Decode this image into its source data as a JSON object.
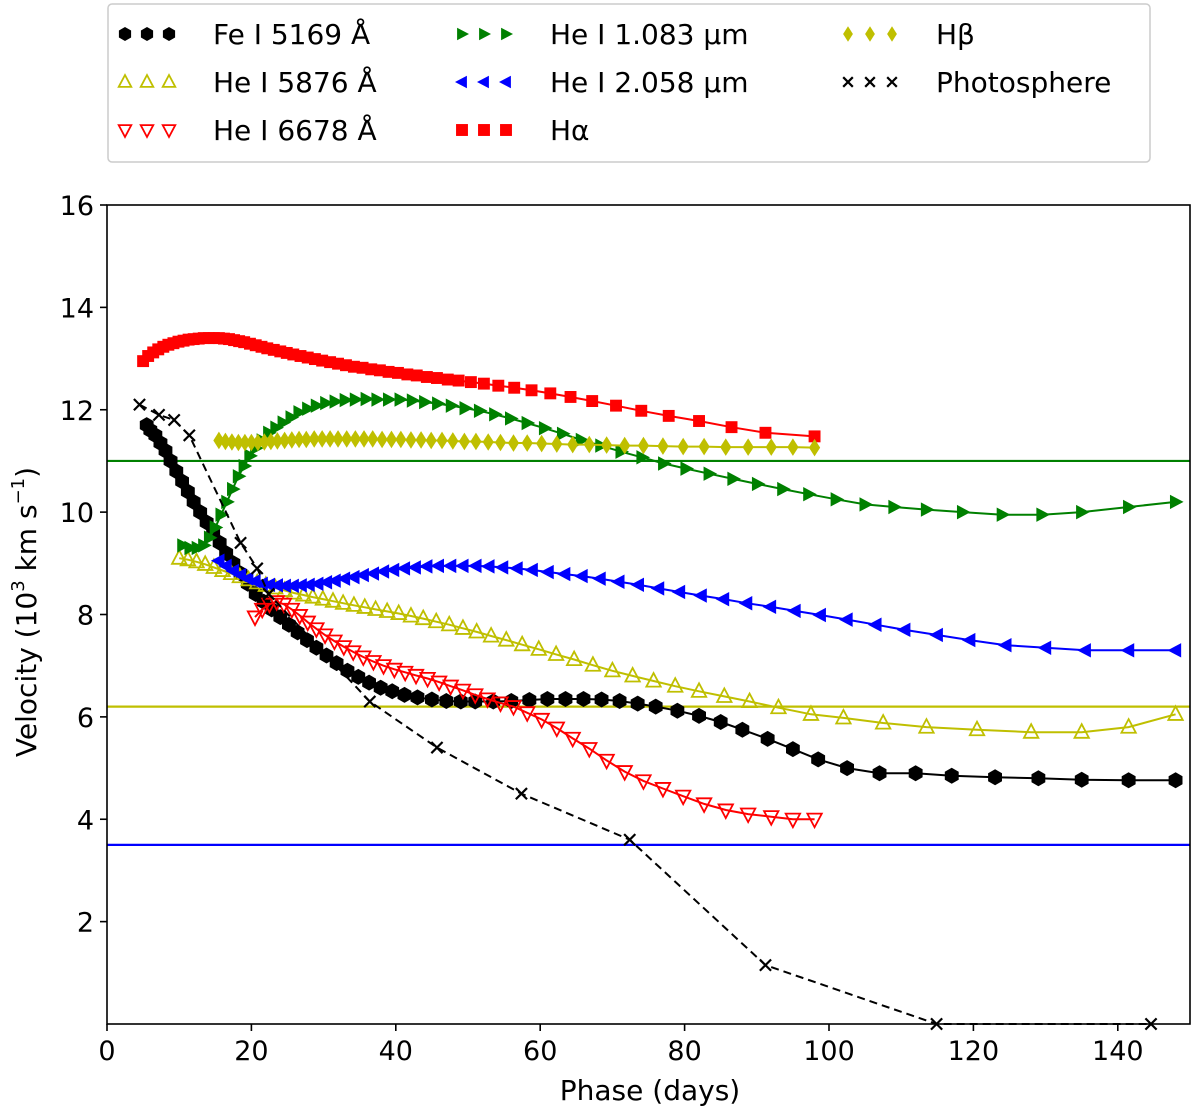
{
  "chart_data": {
    "type": "line",
    "title": "",
    "xlabel": "Phase (days)",
    "ylabel_main": "Velocity (10",
    "ylabel_sup": "3",
    "ylabel_unit": " km s",
    "ylabel_sup2": "−1",
    "ylabel_close": ")",
    "xlim": [
      0,
      150
    ],
    "ylim": [
      0,
      16
    ],
    "xticks": [
      0,
      20,
      40,
      60,
      80,
      100,
      120,
      140
    ],
    "yticks": [
      2,
      4,
      6,
      8,
      10,
      12,
      14,
      16
    ],
    "legend_position": "top-center",
    "hlines": [
      {
        "name": "He I 1.083 µm line",
        "y": 11.0,
        "color": "#008000"
      },
      {
        "name": "He I 5876 Å line",
        "y": 6.2,
        "color": "#bfbf00"
      },
      {
        "name": "He I 2.058 µm line",
        "y": 3.5,
        "color": "#0000ff"
      }
    ],
    "series": [
      {
        "name": "Fe I 5169 Å",
        "marker": "hexagon",
        "color": "#000000",
        "filled": true,
        "linestyle": "solid",
        "x": [
          5.5,
          6,
          6.7,
          7.4,
          8.1,
          8.8,
          9.6,
          10.4,
          11.2,
          12,
          12.9,
          13.8,
          14.7,
          15.6,
          16.5,
          17.5,
          18.5,
          19.5,
          20.6,
          21.7,
          22.8,
          24,
          25.2,
          26.4,
          27.7,
          29,
          30.4,
          31.8,
          33.3,
          34.8,
          36.3,
          37.9,
          39.5,
          41.2,
          43,
          45,
          47,
          49,
          51,
          53.5,
          56,
          58.5,
          61,
          63.5,
          66,
          68.5,
          71,
          73.5,
          76,
          79,
          82,
          85,
          88,
          91.5,
          95,
          98.5,
          102.5,
          107,
          112,
          117,
          123,
          129,
          135,
          141.5,
          148
        ],
        "y": [
          11.7,
          11.6,
          11.5,
          11.35,
          11.2,
          11.0,
          10.8,
          10.6,
          10.4,
          10.2,
          10.0,
          9.8,
          9.6,
          9.4,
          9.2,
          9.0,
          8.8,
          8.6,
          8.4,
          8.25,
          8.1,
          7.95,
          7.8,
          7.65,
          7.5,
          7.35,
          7.2,
          7.05,
          6.9,
          6.78,
          6.67,
          6.57,
          6.5,
          6.43,
          6.38,
          6.34,
          6.31,
          6.3,
          6.3,
          6.3,
          6.31,
          6.33,
          6.35,
          6.35,
          6.35,
          6.34,
          6.31,
          6.26,
          6.2,
          6.12,
          6.02,
          5.9,
          5.75,
          5.57,
          5.37,
          5.17,
          5.0,
          4.9,
          4.9,
          4.85,
          4.82,
          4.8,
          4.77,
          4.76,
          4.76
        ]
      },
      {
        "name": "He I 5876 Å",
        "marker": "triangle-up",
        "color": "#bfbf00",
        "filled": false,
        "linestyle": "solid",
        "x": [
          10,
          11.2,
          12.4,
          13.6,
          14.8,
          16,
          17.2,
          18.4,
          19.6,
          20.8,
          22,
          23.3,
          24.6,
          25.9,
          27.2,
          28.5,
          29.9,
          31.3,
          32.7,
          34.2,
          35.7,
          37.2,
          38.8,
          40.4,
          42.1,
          43.8,
          45.6,
          47.4,
          49.3,
          51.2,
          53.2,
          55.3,
          57.5,
          59.8,
          62.2,
          64.7,
          67.3,
          70,
          72.8,
          75.7,
          78.7,
          82,
          85.5,
          89,
          93,
          97.5,
          102,
          107.5,
          113.5,
          120.5,
          128,
          135,
          141.5,
          148
        ],
        "y": [
          9.1,
          9.07,
          9.03,
          8.98,
          8.92,
          8.86,
          8.8,
          8.74,
          8.68,
          8.62,
          8.57,
          8.52,
          8.47,
          8.42,
          8.38,
          8.34,
          8.3,
          8.26,
          8.22,
          8.18,
          8.14,
          8.1,
          8.06,
          8.02,
          7.97,
          7.92,
          7.86,
          7.8,
          7.73,
          7.66,
          7.58,
          7.5,
          7.41,
          7.32,
          7.22,
          7.12,
          7.01,
          6.9,
          6.8,
          6.7,
          6.6,
          6.5,
          6.4,
          6.3,
          6.18,
          6.05,
          5.98,
          5.88,
          5.8,
          5.75,
          5.7,
          5.7,
          5.8,
          6.05
        ]
      },
      {
        "name": "He I 6678 Å",
        "marker": "triangle-down",
        "color": "#ff0000",
        "filled": false,
        "linestyle": "solid",
        "x": [
          20.5,
          21.5,
          22.5,
          23.5,
          24.5,
          25.6,
          26.7,
          27.8,
          29,
          30.2,
          31.5,
          32.8,
          34.1,
          35.5,
          36.9,
          38.3,
          39.8,
          41.3,
          42.8,
          44.4,
          46,
          47.6,
          49.3,
          51,
          52.7,
          54.5,
          56.3,
          58.2,
          60.2,
          62.3,
          64.5,
          66.8,
          69.2,
          71.7,
          74.3,
          77,
          79.8,
          82.7,
          85.7,
          88.8,
          92,
          95,
          98
        ],
        "y": [
          7.95,
          8.1,
          8.2,
          8.25,
          8.2,
          8.1,
          7.98,
          7.85,
          7.72,
          7.6,
          7.48,
          7.37,
          7.27,
          7.17,
          7.08,
          7.0,
          6.93,
          6.87,
          6.81,
          6.75,
          6.68,
          6.6,
          6.52,
          6.43,
          6.35,
          6.27,
          6.2,
          6.08,
          5.95,
          5.78,
          5.58,
          5.38,
          5.15,
          4.93,
          4.75,
          4.6,
          4.45,
          4.3,
          4.18,
          4.1,
          4.05,
          4.0,
          4.0
        ]
      },
      {
        "name": "He I 1.083 µm",
        "marker": "triangle-right",
        "color": "#008000",
        "filled": true,
        "linestyle": "solid",
        "x": [
          10.5,
          11.5,
          12.5,
          13.4,
          14.2,
          15,
          15.8,
          16.6,
          17.4,
          18.2,
          19,
          19.8,
          20.6,
          21.5,
          22.4,
          23.4,
          24.4,
          25.5,
          26.6,
          27.8,
          29,
          30.3,
          31.6,
          33,
          34.4,
          35.9,
          37.4,
          39,
          40.6,
          42.3,
          44,
          45.8,
          47.7,
          49.6,
          51.6,
          53.7,
          55.9,
          58.2,
          60.6,
          63.1,
          65.7,
          68.4,
          71.2,
          74.1,
          77.1,
          80.2,
          83.4,
          86.7,
          90.1,
          93.6,
          97.2,
          101,
          105,
          109,
          113.5,
          118.5,
          124,
          129.5,
          135,
          141.5,
          148
        ],
        "y": [
          9.35,
          9.3,
          9.3,
          9.35,
          9.5,
          9.7,
          9.95,
          10.2,
          10.45,
          10.7,
          10.9,
          11.1,
          11.25,
          11.4,
          11.55,
          11.65,
          11.75,
          11.85,
          11.95,
          12.02,
          12.08,
          12.13,
          12.16,
          12.19,
          12.2,
          12.21,
          12.2,
          12.2,
          12.2,
          12.18,
          12.15,
          12.12,
          12.08,
          12.03,
          11.98,
          11.91,
          11.83,
          11.74,
          11.64,
          11.53,
          11.41,
          11.3,
          11.18,
          11.07,
          10.95,
          10.85,
          10.75,
          10.65,
          10.55,
          10.45,
          10.35,
          10.25,
          10.15,
          10.1,
          10.05,
          10.0,
          9.95,
          9.95,
          10.0,
          10.1,
          10.2
        ]
      },
      {
        "name": "He I 2.058 µm",
        "marker": "triangle-left",
        "color": "#0000ff",
        "filled": true,
        "linestyle": "solid",
        "x": [
          15.5,
          16.5,
          17.5,
          18.5,
          19.5,
          20.5,
          21.5,
          22.5,
          23.6,
          24.7,
          25.8,
          26.9,
          28,
          29.2,
          30.4,
          31.6,
          32.9,
          34.2,
          35.5,
          36.9,
          38.3,
          39.7,
          41.2,
          42.7,
          44.3,
          45.9,
          47.6,
          49.3,
          51.1,
          52.9,
          54.8,
          56.8,
          58.9,
          61.1,
          63.4,
          65.8,
          68.3,
          70.9,
          73.6,
          76.4,
          79.3,
          82.3,
          85.4,
          88.6,
          91.9,
          95.3,
          98.8,
          102.5,
          106.5,
          110.5,
          115,
          119.5,
          124.5,
          130,
          135.5,
          141.5,
          148
        ],
        "y": [
          9.05,
          8.95,
          8.85,
          8.77,
          8.7,
          8.65,
          8.6,
          8.58,
          8.57,
          8.56,
          8.56,
          8.57,
          8.58,
          8.6,
          8.63,
          8.66,
          8.7,
          8.73,
          8.77,
          8.8,
          8.84,
          8.87,
          8.9,
          8.92,
          8.94,
          8.95,
          8.95,
          8.95,
          8.95,
          8.94,
          8.92,
          8.9,
          8.87,
          8.83,
          8.79,
          8.75,
          8.7,
          8.64,
          8.58,
          8.51,
          8.44,
          8.37,
          8.3,
          8.22,
          8.15,
          8.07,
          7.99,
          7.9,
          7.8,
          7.7,
          7.6,
          7.5,
          7.4,
          7.35,
          7.3,
          7.3,
          7.3
        ]
      },
      {
        "name": "Hα",
        "marker": "square",
        "color": "#ff0000",
        "filled": true,
        "linestyle": "solid",
        "x": [
          5,
          5.7,
          6.4,
          7.1,
          7.8,
          8.5,
          9.2,
          9.9,
          10.6,
          11.3,
          12,
          12.7,
          13.4,
          14.1,
          14.8,
          15.5,
          16.2,
          16.9,
          17.6,
          18.3,
          19,
          19.8,
          20.6,
          21.4,
          22.2,
          23.1,
          24,
          24.9,
          25.8,
          26.8,
          27.8,
          28.8,
          29.8,
          30.9,
          32,
          33.1,
          34.2,
          35.4,
          36.6,
          37.8,
          39,
          40.3,
          41.6,
          42.9,
          44.3,
          45.7,
          47.2,
          48.7,
          50.4,
          52.2,
          54.2,
          56.4,
          58.8,
          61.4,
          64.2,
          67.2,
          70.5,
          74,
          77.8,
          82,
          86.5,
          91.2,
          98
        ],
        "y": [
          12.95,
          13.05,
          13.12,
          13.18,
          13.23,
          13.27,
          13.3,
          13.33,
          13.35,
          13.37,
          13.38,
          13.39,
          13.4,
          13.4,
          13.4,
          13.4,
          13.39,
          13.38,
          13.36,
          13.34,
          13.32,
          13.29,
          13.26,
          13.23,
          13.2,
          13.17,
          13.14,
          13.11,
          13.08,
          13.05,
          13.02,
          12.99,
          12.96,
          12.93,
          12.9,
          12.87,
          12.84,
          12.82,
          12.79,
          12.77,
          12.74,
          12.72,
          12.69,
          12.67,
          12.64,
          12.62,
          12.59,
          12.57,
          12.54,
          12.51,
          12.47,
          12.43,
          12.38,
          12.32,
          12.25,
          12.17,
          12.08,
          11.98,
          11.88,
          11.78,
          11.66,
          11.55,
          11.48
        ]
      },
      {
        "name": "Hβ",
        "marker": "diamond",
        "color": "#bfbf00",
        "filled": true,
        "linestyle": "solid",
        "x": [
          15.5,
          16.4,
          17.3,
          18.2,
          19.1,
          20,
          20.9,
          21.8,
          22.7,
          23.6,
          24.6,
          25.6,
          26.6,
          27.6,
          28.7,
          29.8,
          30.9,
          32,
          33.2,
          34.4,
          35.6,
          36.8,
          38.1,
          39.4,
          40.7,
          42.1,
          43.5,
          44.9,
          46.4,
          47.9,
          49.5,
          51.1,
          52.8,
          54.5,
          56.3,
          58.2,
          60.2,
          62.3,
          64.5,
          66.8,
          69.2,
          71.7,
          74.3,
          77,
          79.8,
          82.7,
          85.7,
          88.8,
          92,
          95,
          98
        ],
        "y": [
          11.4,
          11.38,
          11.37,
          11.36,
          11.36,
          11.36,
          11.36,
          11.37,
          11.38,
          11.39,
          11.4,
          11.41,
          11.42,
          11.42,
          11.43,
          11.43,
          11.43,
          11.43,
          11.43,
          11.43,
          11.43,
          11.43,
          11.42,
          11.42,
          11.42,
          11.41,
          11.41,
          11.4,
          11.4,
          11.39,
          11.38,
          11.38,
          11.37,
          11.36,
          11.35,
          11.35,
          11.34,
          11.33,
          11.32,
          11.32,
          11.31,
          11.3,
          11.3,
          11.29,
          11.28,
          11.28,
          11.27,
          11.27,
          11.27,
          11.27,
          11.26
        ]
      },
      {
        "name": "Photosphere",
        "marker": "x",
        "color": "#000000",
        "filled": false,
        "linestyle": "dashed",
        "x": [
          4.5,
          7.2,
          9.3,
          11.4,
          18.5,
          20.8,
          22.4,
          36.4,
          45.7,
          57.4,
          72.4,
          91.2,
          114.9,
          144.6
        ],
        "y": [
          12.1,
          11.9,
          11.8,
          11.5,
          9.4,
          8.9,
          8.4,
          6.3,
          5.4,
          4.5,
          3.6,
          1.15,
          0.0,
          0.0
        ]
      }
    ]
  }
}
